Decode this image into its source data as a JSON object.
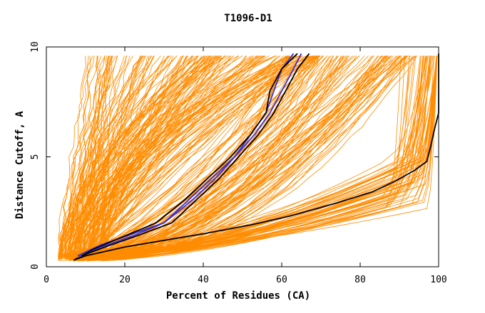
{
  "chart_data": {
    "type": "line",
    "title": "T1096-D1",
    "xlabel": "Percent of Residues (CA)",
    "ylabel": "Distance Cutoff, A",
    "xlim": [
      0,
      100
    ],
    "ylim": [
      0,
      10
    ],
    "x_ticks": [
      "0",
      "20",
      "40",
      "60",
      "80",
      "100"
    ],
    "y_ticks": [
      "0",
      "5",
      "10"
    ],
    "grid": false,
    "legend": "none",
    "colors": {
      "background_curves": "#ff8c00",
      "highlight_black": "#000000",
      "highlight_blue": "#3a2fd0",
      "axes": "#000000"
    },
    "series": [
      {
        "values": [
          [
            8,
            0.5
          ],
          [
            14,
            1.0
          ],
          [
            22,
            1.5
          ],
          [
            30,
            2.0
          ],
          [
            36,
            3.0
          ],
          [
            42,
            4.0
          ],
          [
            48,
            5.0
          ],
          [
            52,
            6.0
          ],
          [
            56,
            7.0
          ],
          [
            58,
            8.0
          ],
          [
            60,
            9.0
          ],
          [
            63,
            9.7
          ]
        ]
      },
      {
        "values": [
          [
            7,
            0.3
          ],
          [
            12,
            0.8
          ],
          [
            20,
            1.4
          ],
          [
            28,
            2.0
          ],
          [
            35,
            3.0
          ],
          [
            41,
            4.0
          ],
          [
            47,
            5.0
          ],
          [
            52,
            6.0
          ],
          [
            56,
            7.0
          ],
          [
            57,
            8.0
          ],
          [
            60,
            9.0
          ],
          [
            64,
            9.7
          ]
        ]
      },
      {
        "values": [
          [
            8,
            0.4
          ],
          [
            14,
            0.9
          ],
          [
            22,
            1.4
          ],
          [
            30,
            2.0
          ],
          [
            37,
            3.0
          ],
          [
            43,
            4.0
          ],
          [
            48,
            5.0
          ],
          [
            53,
            6.0
          ],
          [
            57,
            7.0
          ],
          [
            60,
            8.0
          ],
          [
            63,
            9.0
          ],
          [
            65,
            9.7
          ]
        ]
      },
      {
        "values": [
          [
            9,
            0.5
          ],
          [
            15,
            0.9
          ],
          [
            23,
            1.4
          ],
          [
            32,
            2.0
          ],
          [
            38,
            3.0
          ],
          [
            44,
            4.0
          ],
          [
            49,
            5.0
          ],
          [
            54,
            6.0
          ],
          [
            58,
            7.0
          ],
          [
            61,
            8.0
          ],
          [
            64,
            9.0
          ],
          [
            67,
            9.7
          ]
        ]
      },
      {
        "values": [
          [
            7,
            0.3
          ],
          [
            10,
            0.5
          ],
          [
            20,
            0.9
          ],
          [
            30,
            1.2
          ],
          [
            40,
            1.5
          ],
          [
            52,
            1.9
          ],
          [
            62,
            2.3
          ],
          [
            74,
            2.9
          ],
          [
            83,
            3.4
          ],
          [
            89,
            3.9
          ],
          [
            94,
            4.4
          ],
          [
            97,
            4.8
          ],
          [
            98,
            5.5
          ],
          [
            99,
            6.3
          ],
          [
            100,
            7.0
          ],
          [
            100,
            8.0
          ],
          [
            100,
            9.0
          ],
          [
            100,
            9.7
          ]
        ]
      }
    ],
    "background_curve_count": 320
  }
}
